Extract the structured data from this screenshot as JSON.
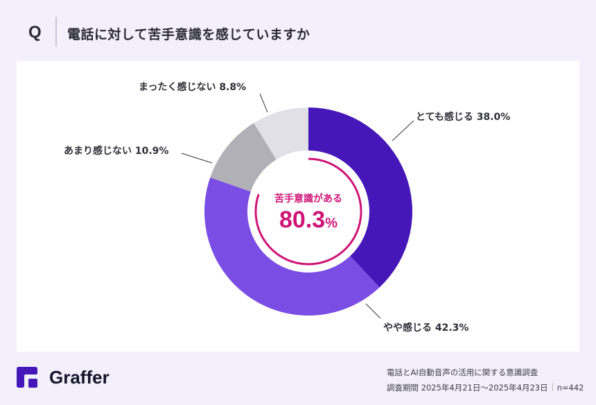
{
  "header": {
    "q_mark": "Q",
    "title": "電話に対して苦手意識を感じていますか"
  },
  "center": {
    "caption": "苦手意識がある",
    "value": "80.3",
    "unit": "%"
  },
  "labels": {
    "s0": "とても感じる 38.0%",
    "s1": "やや感じる 42.3%",
    "s2": "あまり感じない 10.9%",
    "s3": "まったく感じない 8.8%"
  },
  "footer": {
    "brand": "Graffer",
    "survey_title": "電話とAI自動音声の活用に関する意識調査",
    "period": "調査期間 2025年4月21日〜2025年4月23日",
    "n": "n=442"
  },
  "colors": {
    "very": "#4516b8",
    "somewhat": "#7a4de4",
    "not_much": "#b1b0b7",
    "not_at_all": "#e1e0e7",
    "highlight": "#cf1477",
    "background": "#f3f0fb"
  },
  "chart_data": {
    "type": "pie",
    "subtype": "donut",
    "title": "電話に対して苦手意識を感じていますか",
    "categories": [
      "とても感じる",
      "やや感じる",
      "あまり感じない",
      "まったく感じない"
    ],
    "values": [
      38.0,
      42.3,
      10.9,
      8.8
    ],
    "unit": "%",
    "start_angle": "12 o'clock, clockwise",
    "center_annotation": {
      "label": "苦手意識がある",
      "value": 80.3,
      "unit": "%"
    },
    "n": 442,
    "legend": "none (direct labels with leader lines)"
  }
}
